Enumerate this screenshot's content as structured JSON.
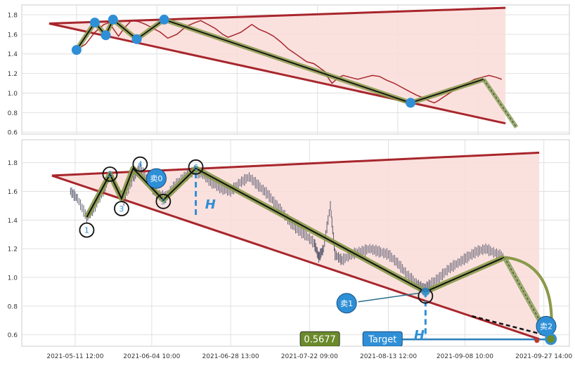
{
  "chart_data": [
    {
      "type": "line",
      "panel": "top",
      "ylim": [
        0.58,
        1.9
      ],
      "y_ticks": [
        "0.6",
        "0.8",
        "1.0",
        "1.2",
        "1.4",
        "1.6",
        "1.8"
      ],
      "grid": true,
      "series": [
        {
          "role": "price",
          "color": "#a8262c",
          "points": [
            [
              1.0,
              1.44
            ],
            [
              1.5,
              1.5
            ],
            [
              2.0,
              1.62
            ],
            [
              2.5,
              1.7
            ],
            [
              2.8,
              1.72
            ],
            [
              3.0,
              1.66
            ],
            [
              3.3,
              1.58
            ],
            [
              3.6,
              1.66
            ],
            [
              4.0,
              1.74
            ],
            [
              4.4,
              1.73
            ],
            [
              4.8,
              1.7
            ],
            [
              5.2,
              1.66
            ],
            [
              5.6,
              1.62
            ],
            [
              6.0,
              1.56
            ],
            [
              6.5,
              1.6
            ],
            [
              7.0,
              1.68
            ],
            [
              7.5,
              1.72
            ],
            [
              7.8,
              1.74
            ],
            [
              8.2,
              1.7
            ],
            [
              8.6,
              1.66
            ],
            [
              9.0,
              1.6
            ],
            [
              9.3,
              1.57
            ],
            [
              9.6,
              1.59
            ],
            [
              10.0,
              1.62
            ],
            [
              10.3,
              1.66
            ],
            [
              10.6,
              1.7
            ],
            [
              11.0,
              1.65
            ],
            [
              11.4,
              1.62
            ],
            [
              11.8,
              1.58
            ],
            [
              12.2,
              1.52
            ],
            [
              12.6,
              1.45
            ],
            [
              13.0,
              1.4
            ],
            [
              13.3,
              1.36
            ],
            [
              13.6,
              1.32
            ],
            [
              14.0,
              1.3
            ],
            [
              14.3,
              1.26
            ],
            [
              14.6,
              1.22
            ],
            [
              14.8,
              1.15
            ],
            [
              15.0,
              1.1
            ],
            [
              15.3,
              1.15
            ],
            [
              15.6,
              1.18
            ],
            [
              16.0,
              1.16
            ],
            [
              16.4,
              1.14
            ],
            [
              16.8,
              1.16
            ],
            [
              17.2,
              1.18
            ],
            [
              17.6,
              1.17
            ],
            [
              18.0,
              1.13
            ],
            [
              18.4,
              1.1
            ],
            [
              18.8,
              1.06
            ],
            [
              19.2,
              1.02
            ],
            [
              19.6,
              0.98
            ],
            [
              20.0,
              0.95
            ],
            [
              20.3,
              0.92
            ],
            [
              20.6,
              0.9
            ],
            [
              20.8,
              0.92
            ],
            [
              21.2,
              0.97
            ],
            [
              21.6,
              1.02
            ],
            [
              22.0,
              1.06
            ],
            [
              22.4,
              1.1
            ],
            [
              22.8,
              1.14
            ],
            [
              23.2,
              1.16
            ],
            [
              23.6,
              1.18
            ],
            [
              24.0,
              1.16
            ],
            [
              24.3,
              1.14
            ]
          ]
        },
        {
          "role": "zigzag",
          "color": "#111111",
          "points": [
            [
              1.0,
              1.44
            ],
            [
              2.0,
              1.72
            ],
            [
              2.6,
              1.59
            ],
            [
              3.0,
              1.75
            ],
            [
              4.3,
              1.55
            ],
            [
              5.8,
              1.75
            ],
            [
              19.3,
              0.9
            ],
            [
              23.3,
              1.14
            ]
          ]
        },
        {
          "role": "projection",
          "color": "#8aa05a",
          "points": [
            [
              23.3,
              1.14
            ],
            [
              25.1,
              0.65
            ]
          ]
        }
      ],
      "trend_lines": [
        {
          "from": [
            -0.5,
            1.71
          ],
          "to": [
            24.5,
            1.87
          ],
          "color": "#a8262c"
        },
        {
          "from": [
            -0.5,
            1.71
          ],
          "to": [
            24.5,
            0.69
          ],
          "color": "#a8262c"
        }
      ]
    },
    {
      "type": "line",
      "panel": "bottom",
      "ylim": [
        0.52,
        1.96
      ],
      "y_ticks": [
        "0.6",
        "0.8",
        "1.0",
        "1.2",
        "1.4",
        "1.6",
        "1.8"
      ],
      "x_ticks": [
        "2021-05-11 12:00",
        "2021-06-04 10:00",
        "2021-06-28 13:00",
        "2021-07-22 09:00",
        "2021-08-13 12:00",
        "2021-09-08 10:00",
        "2021-09-27 14:00"
      ],
      "grid": true,
      "series": [
        {
          "role": "price",
          "color": "#5a5a6e",
          "points": [
            [
              0.3,
              1.6
            ],
            [
              0.6,
              1.55
            ],
            [
              1.0,
              1.42
            ],
            [
              1.3,
              1.48
            ],
            [
              1.7,
              1.6
            ],
            [
              2.0,
              1.72
            ],
            [
              2.3,
              1.62
            ],
            [
              2.6,
              1.54
            ],
            [
              3.0,
              1.7
            ],
            [
              3.3,
              1.76
            ],
            [
              3.7,
              1.66
            ],
            [
              4.0,
              1.58
            ],
            [
              4.4,
              1.56
            ],
            [
              4.8,
              1.64
            ],
            [
              5.2,
              1.7
            ],
            [
              5.6,
              1.74
            ],
            [
              6.0,
              1.72
            ],
            [
              6.4,
              1.66
            ],
            [
              6.8,
              1.62
            ],
            [
              7.2,
              1.6
            ],
            [
              7.6,
              1.66
            ],
            [
              8.0,
              1.7
            ],
            [
              8.4,
              1.64
            ],
            [
              8.8,
              1.58
            ],
            [
              9.2,
              1.5
            ],
            [
              9.6,
              1.42
            ],
            [
              10.0,
              1.34
            ],
            [
              10.4,
              1.3
            ],
            [
              10.8,
              1.24
            ],
            [
              11.0,
              1.14
            ],
            [
              11.2,
              1.2
            ],
            [
              11.5,
              1.5
            ],
            [
              11.7,
              1.16
            ],
            [
              12.0,
              1.12
            ],
            [
              12.4,
              1.16
            ],
            [
              12.8,
              1.18
            ],
            [
              13.2,
              1.2
            ],
            [
              13.6,
              1.18
            ],
            [
              14.0,
              1.16
            ],
            [
              14.4,
              1.1
            ],
            [
              14.8,
              1.02
            ],
            [
              15.2,
              0.96
            ],
            [
              15.5,
              0.92
            ],
            [
              15.8,
              0.95
            ],
            [
              16.2,
              1.0
            ],
            [
              16.6,
              1.06
            ],
            [
              17.0,
              1.1
            ],
            [
              17.4,
              1.14
            ],
            [
              17.8,
              1.18
            ],
            [
              18.2,
              1.2
            ],
            [
              18.6,
              1.17
            ],
            [
              19.0,
              1.14
            ]
          ]
        },
        {
          "role": "zigzag",
          "color": "#111111",
          "points": [
            [
              1.0,
              1.42
            ],
            [
              2.0,
              1.72
            ],
            [
              2.5,
              1.55
            ],
            [
              3.0,
              1.76
            ],
            [
              4.3,
              1.54
            ],
            [
              5.7,
              1.76
            ],
            [
              15.6,
              0.9
            ],
            [
              19.0,
              1.14
            ]
          ]
        },
        {
          "role": "projection",
          "color": "#8aa05a",
          "points": [
            [
              19.0,
              1.14
            ],
            [
              21.0,
              0.56
            ]
          ]
        }
      ],
      "trend_lines": [
        {
          "from": [
            -0.5,
            1.71
          ],
          "to": [
            20.5,
            1.87
          ],
          "color": "#a8262c"
        },
        {
          "from": [
            -0.5,
            1.71
          ],
          "to": [
            20.5,
            0.57
          ],
          "color": "#a8262c"
        }
      ],
      "point_labels": [
        "1",
        "2",
        "3",
        "4",
        "5",
        "6"
      ],
      "signals": [
        "卖0",
        "卖1",
        "卖2"
      ],
      "annotations": [
        "H",
        "H"
      ],
      "target_value": "0.5677",
      "target_label": "Target"
    }
  ],
  "colors": {
    "zone_fill": "#f9dcd8",
    "zigzag_band": "#8a9a4a",
    "marker_blue": "#2e8fd6",
    "target_line": "#2a7fb8",
    "value_box": "#6b8a2a"
  }
}
